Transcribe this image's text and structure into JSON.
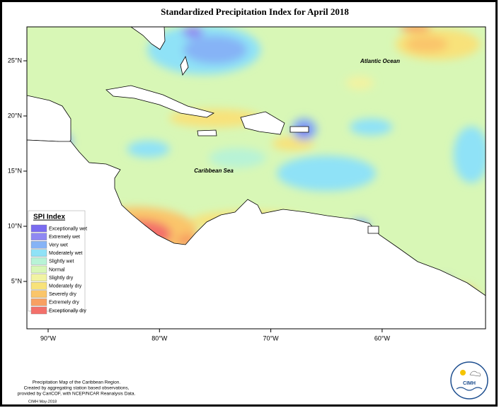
{
  "title": "Standardized Precipitation Index for April 2018",
  "map": {
    "ocean_labels": [
      "Atlantic Ocean",
      "Caribbean Sea"
    ],
    "lon_ticks": [
      {
        "value": -90,
        "label": "90°W"
      },
      {
        "value": -80,
        "label": "80°W"
      },
      {
        "value": -70,
        "label": "70°W"
      },
      {
        "value": -60,
        "label": "60°W"
      }
    ],
    "lat_ticks": [
      {
        "value": 5,
        "label": "5°N"
      },
      {
        "value": 10,
        "label": "10°N"
      },
      {
        "value": 15,
        "label": "15°N"
      },
      {
        "value": 20,
        "label": "20°N"
      },
      {
        "value": 25,
        "label": "25°N"
      }
    ]
  },
  "legend": {
    "title": "SPI Index",
    "entries": [
      {
        "label": "Exceptionally wet",
        "color": "#7a6cf0"
      },
      {
        "label": "Extremely wet",
        "color": "#8f88f2"
      },
      {
        "label": "Very wet",
        "color": "#86b3f6"
      },
      {
        "label": "Moderately wet",
        "color": "#8fe2f7"
      },
      {
        "label": "Slightly wet",
        "color": "#b8f3d6"
      },
      {
        "label": "Normal",
        "color": "#d8f7b6"
      },
      {
        "label": "Slightly dry",
        "color": "#f1f3a2"
      },
      {
        "label": "Moderately dry",
        "color": "#f8e27a"
      },
      {
        "label": "Severely dry",
        "color": "#fac56a"
      },
      {
        "label": "Extremely dry",
        "color": "#f8a062"
      },
      {
        "label": "Exceptionally dry",
        "color": "#f3706a"
      }
    ]
  },
  "footer": {
    "lines": [
      "Precipitation Map of the Caribbean Region.",
      "Created by aggregating station based observations,",
      "provided by CariCOF, with NCEP/NCAR Reanalysis Data."
    ],
    "credit": "CIMH May-2018"
  },
  "logo": {
    "text": "CIMH"
  }
}
